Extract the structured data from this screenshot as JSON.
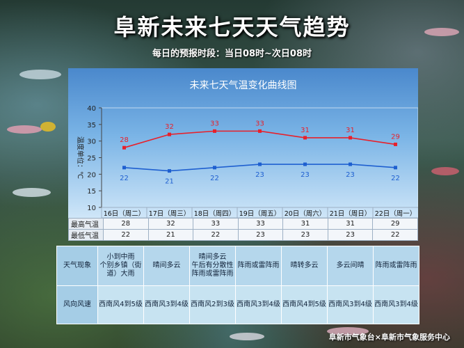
{
  "page": {
    "title": "阜新未来七天天气趋势",
    "subtitle": "每日的预报时段：当日08时~次日08时",
    "footer": "阜新市气象台×阜新市气象服务中心"
  },
  "chart_data": {
    "type": "line",
    "title": "未来七天气温变化曲线图",
    "ylabel": "温度单位：℃",
    "ylim": [
      10,
      40
    ],
    "yticks": [
      10,
      15,
      20,
      25,
      30,
      35,
      40
    ],
    "categories": [
      "16日（周二）",
      "17日（周三）",
      "18日（周四）",
      "19日（周五）",
      "20日（周六）",
      "21日（周日）",
      "22日（周一）"
    ],
    "series": [
      {
        "name": "最高气温",
        "color": "#e8202a",
        "values": [
          28,
          32,
          33,
          33,
          31,
          31,
          29
        ]
      },
      {
        "name": "最低气温",
        "color": "#1e5fd0",
        "values": [
          22,
          21,
          22,
          23,
          23,
          23,
          22
        ]
      }
    ]
  },
  "table": {
    "weather_label": "天气现象",
    "wind_label": "风向风速",
    "weather": [
      "小到中雨\n个别乡镇（街道）大雨",
      "晴间多云",
      "晴间多云\n午后有分散性阵雨或雷阵雨",
      "阵雨或雷阵雨",
      "晴转多云",
      "多云间晴",
      "阵雨或雷阵雨"
    ],
    "wind": [
      "西南风4到5级",
      "西南风3到4级",
      "西南风2到3级",
      "西南风3到4级",
      "西南风4到5级",
      "西南风3到4级",
      "西南风3到4级"
    ]
  }
}
